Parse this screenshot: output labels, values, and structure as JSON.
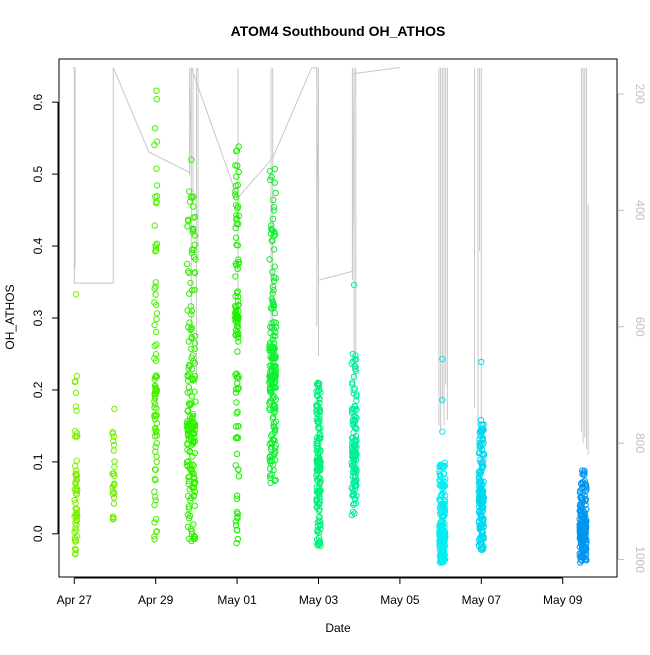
{
  "chart_data": {
    "type": "scatter",
    "title": "ATOM4 Southbound OH_ATHOS",
    "xlabel": "Date",
    "ylabel": "OH_ATHOS",
    "x_axis": {
      "type": "date",
      "ticks": [
        {
          "date": "2016-04-27",
          "label": "Apr 27"
        },
        {
          "date": "2016-04-29",
          "label": "Apr 29"
        },
        {
          "date": "2016-05-01",
          "label": "May 01"
        },
        {
          "date": "2016-05-03",
          "label": "May 03"
        },
        {
          "date": "2016-05-05",
          "label": "May 05"
        },
        {
          "date": "2016-05-07",
          "label": "May 07"
        },
        {
          "date": "2016-05-09",
          "label": "May 09"
        }
      ],
      "range": [
        "2016-04-26T15:00",
        "2016-05-10T08:00"
      ]
    },
    "y_axis": {
      "ticks": [
        {
          "value": 0.0,
          "label": "0.0"
        },
        {
          "value": 0.1,
          "label": "0.1"
        },
        {
          "value": 0.2,
          "label": "0.2"
        },
        {
          "value": 0.3,
          "label": "0.3"
        },
        {
          "value": 0.4,
          "label": "0.4"
        },
        {
          "value": 0.5,
          "label": "0.5"
        },
        {
          "value": 0.6,
          "label": "0.6"
        }
      ],
      "range": [
        -0.06,
        0.66
      ]
    },
    "y2_axis": {
      "ticks": [
        {
          "value": 200,
          "label": "200"
        },
        {
          "value": 400,
          "label": "400"
        },
        {
          "value": 600,
          "label": "600"
        },
        {
          "value": 800,
          "label": "800"
        },
        {
          "value": 1000,
          "label": "1000"
        }
      ],
      "range": [
        1030,
        140
      ],
      "color": "#bfbfbf",
      "series_color": "#c8c8c8"
    },
    "grid": false,
    "legend": "none",
    "marker": "open-circle",
    "clusters": [
      {
        "date": "2016-04-27T01:00",
        "spread_hours": 1.6,
        "y_min": -0.04,
        "y_max": 0.22,
        "y_center": 0.06,
        "count": 60,
        "color": "#7df000",
        "outliers": [
          0.333
        ]
      },
      {
        "date": "2016-04-27T23:00",
        "spread_hours": 1.5,
        "y_min": 0.015,
        "y_max": 0.2,
        "y_center": 0.07,
        "count": 24,
        "color": "#70f000",
        "outliers": [
          0.129
        ]
      },
      {
        "date": "2016-04-29T00:00",
        "spread_hours": 1.6,
        "y_min": -0.01,
        "y_max": 0.635,
        "y_center": 0.2,
        "count": 90,
        "color": "#4df000",
        "outliers": []
      },
      {
        "date": "2016-04-29T21:00",
        "spread_hours": 5.0,
        "y_min": -0.015,
        "y_max": 0.49,
        "y_center": 0.15,
        "count": 190,
        "color": "#32f000",
        "outliers": [
          0.52
        ]
      },
      {
        "date": "2016-05-01T00:00",
        "spread_hours": 2.2,
        "y_min": -0.015,
        "y_max": 0.55,
        "y_center": 0.3,
        "count": 110,
        "color": "#1df000",
        "outliers": [
          0.053
        ]
      },
      {
        "date": "2016-05-01T21:00",
        "spread_hours": 4.0,
        "y_min": 0.07,
        "y_max": 0.51,
        "y_center": 0.22,
        "count": 190,
        "color": "#10f030",
        "outliers": []
      },
      {
        "date": "2016-05-03T00:00",
        "spread_hours": 2.5,
        "y_min": -0.02,
        "y_max": 0.21,
        "y_center": 0.1,
        "count": 150,
        "color": "#00f07a",
        "outliers": []
      },
      {
        "date": "2016-05-03T21:00",
        "spread_hours": 3.0,
        "y_min": 0.02,
        "y_max": 0.25,
        "y_center": 0.11,
        "count": 140,
        "color": "#00f09a",
        "outliers": [
          0.346
        ]
      },
      {
        "date": "2016-05-06T01:00",
        "spread_hours": 3.5,
        "y_min": -0.04,
        "y_max": 0.1,
        "y_center": 0.0,
        "count": 220,
        "color": "#00eef0",
        "outliers": [
          0.243,
          0.186,
          0.142
        ]
      },
      {
        "date": "2016-05-07T00:00",
        "spread_hours": 3.0,
        "y_min": -0.025,
        "y_max": 0.16,
        "y_center": 0.05,
        "count": 180,
        "color": "#00d8f0",
        "outliers": [
          0.239
        ]
      },
      {
        "date": "2016-05-09T12:00",
        "spread_hours": 4.0,
        "y_min": -0.04,
        "y_max": 0.088,
        "y_center": 0.01,
        "count": 200,
        "color": "#0096f0",
        "outliers": [
          0.085
        ]
      }
    ],
    "y2_trace": {
      "segments": [
        [
          "2016-04-26T23:00",
          155
        ],
        [
          "2016-04-27T00:00",
          155
        ],
        [
          "2016-04-27T00:00",
          525
        ],
        [
          "2016-04-27T00:00",
          525
        ],
        [
          "2016-04-27T23:00",
          525
        ],
        [
          "2016-04-27T23:00",
          155
        ],
        [
          "2016-04-28T20:00",
          300
        ],
        [
          "2016-04-29T20:00",
          335
        ],
        [
          "2016-04-29T21:00",
          155
        ],
        [
          "2016-04-30T22:00",
          360
        ],
        [
          "2016-05-01T00:00",
          380
        ],
        [
          "2016-05-01T21:00",
          310
        ],
        [
          "2016-05-02T20:00",
          155
        ],
        [
          "2016-05-02T23:00",
          155
        ],
        [
          "2016-05-03T00:00",
          520
        ],
        [
          "2016-05-03T20:00",
          505
        ],
        [
          "2016-05-03T21:00",
          165
        ],
        [
          "2016-05-04T23:00",
          155
        ],
        [
          "2016-05-05T00:00",
          155
        ]
      ],
      "spikes": [
        {
          "date": "2016-04-27T00:30",
          "low": 155,
          "high": 500
        },
        {
          "date": "2016-04-29T20:00",
          "low": 155,
          "high": 340
        },
        {
          "date": "2016-04-29T21:00",
          "low": 155,
          "high": 620
        },
        {
          "date": "2016-04-29T22:00",
          "low": 155,
          "high": 390
        },
        {
          "date": "2016-04-30T00:00",
          "low": 155,
          "high": 700
        },
        {
          "date": "2016-04-30T01:00",
          "low": 155,
          "high": 480
        },
        {
          "date": "2016-05-01T00:30",
          "low": 155,
          "high": 560
        },
        {
          "date": "2016-05-01T20:00",
          "low": 155,
          "high": 720
        },
        {
          "date": "2016-05-01T21:00",
          "low": 155,
          "high": 640
        },
        {
          "date": "2016-05-02T23:00",
          "low": 155,
          "high": 600
        },
        {
          "date": "2016-05-03T00:00",
          "low": 155,
          "high": 650
        },
        {
          "date": "2016-05-03T20:00",
          "low": 155,
          "high": 520
        },
        {
          "date": "2016-05-03T21:00",
          "low": 155,
          "high": 700
        },
        {
          "date": "2016-05-03T22:00",
          "low": 155,
          "high": 690
        },
        {
          "date": "2016-05-05T23:00",
          "low": 155,
          "high": 770
        },
        {
          "date": "2016-05-06T00:00",
          "low": 155,
          "high": 780
        },
        {
          "date": "2016-05-06T01:00",
          "low": 155,
          "high": 730
        },
        {
          "date": "2016-05-06T02:00",
          "low": 155,
          "high": 770
        },
        {
          "date": "2016-05-06T03:00",
          "low": 155,
          "high": 700
        },
        {
          "date": "2016-05-06T04:00",
          "low": 155,
          "high": 760
        },
        {
          "date": "2016-05-06T20:00",
          "low": 155,
          "high": 740
        },
        {
          "date": "2016-05-06T22:00",
          "low": 155,
          "high": 770
        },
        {
          "date": "2016-05-06T23:00",
          "low": 155,
          "high": 470
        },
        {
          "date": "2016-05-07T00:00",
          "low": 155,
          "high": 760
        },
        {
          "date": "2016-05-09T11:00",
          "low": 155,
          "high": 780
        },
        {
          "date": "2016-05-09T12:00",
          "low": 155,
          "high": 800
        },
        {
          "date": "2016-05-09T13:00",
          "low": 155,
          "high": 790
        },
        {
          "date": "2016-05-09T14:00",
          "low": 155,
          "high": 810
        },
        {
          "date": "2016-05-09T15:00",
          "low": 390,
          "high": 820
        }
      ]
    }
  }
}
